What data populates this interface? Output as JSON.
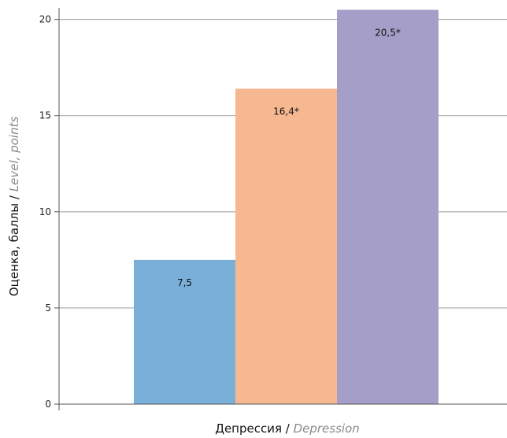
{
  "chart_data": {
    "type": "bar",
    "categories": [
      "",
      "",
      ""
    ],
    "values": [
      7.5,
      16.4,
      20.5
    ],
    "value_labels": [
      "7,5",
      "16,4*",
      "20,5*"
    ],
    "colors": [
      "#7aafda",
      "#f5b890",
      "#a59ec8"
    ],
    "ylim": [
      0,
      20.6
    ],
    "yticks": [
      0,
      5,
      10,
      15,
      20
    ],
    "grid": true,
    "ylabel": {
      "main": "Оценка, баллы / ",
      "italic": "Level, points"
    },
    "xlabel": {
      "main": "Депрессия / ",
      "italic": "Depression"
    }
  }
}
